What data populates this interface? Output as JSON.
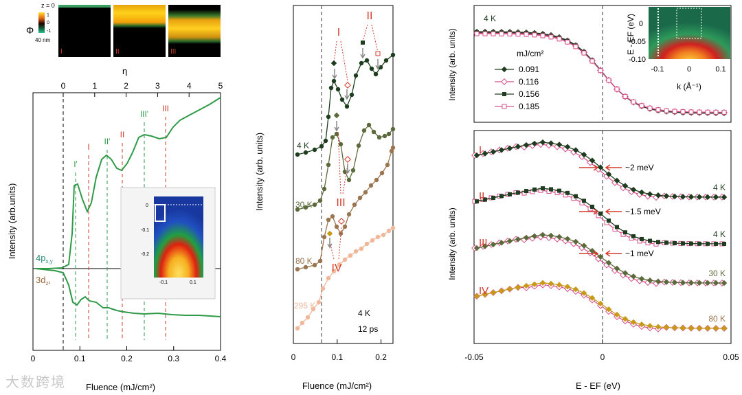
{
  "watermark": "大数跨境",
  "colors": {
    "green": "#2e9a47",
    "dark": "#1e3d1e",
    "olive": "#5b6a3a",
    "brown": "#9a7550",
    "peach": "#f0b79a",
    "pink": "#d6508a",
    "red": "#d23a2a",
    "gold": "#c89a1a"
  },
  "panel_a": {
    "cmap": {
      "z0": "z = 0",
      "phi": "Φ",
      "t1": "1",
      "t0": "0",
      "tm1": "-1",
      "depth": "40 nm",
      "ticks": [
        "1",
        "0",
        "-1"
      ]
    },
    "thumbs": [
      "I",
      "II",
      "III"
    ],
    "eta_label": "η",
    "eta_ticks": [
      "0",
      "1",
      "2",
      "3",
      "4",
      "5"
    ],
    "x_ticks": [
      "0",
      "0.1",
      "0.2",
      "0.3",
      "0.4"
    ],
    "xlabel": "Fluence (mJ/cm²)",
    "ylabel": "Intensity (arb.units)",
    "curve_labels": {
      "p": "4p",
      "p_sub": "x,y",
      "d": "3d",
      "d_sub": "z²"
    },
    "markers_green": [
      "I'",
      "II'",
      "III'"
    ],
    "markers_red": [
      "I",
      "II",
      "III"
    ],
    "inset": {
      "yticks": [
        "0",
        "-0.1",
        "-0.2"
      ],
      "xticks": [
        "-0.1",
        "0.1"
      ]
    }
  },
  "panel_b": {
    "xlabel": "Fluence (mJ/cm²)",
    "ylabel": "Intensity (arb. units)",
    "x_ticks": [
      "0",
      "0.1",
      "0.2"
    ],
    "temps": [
      "4 K",
      "30 K",
      "80 K",
      "295 K"
    ],
    "note1": "4 K",
    "note2": "12 ps",
    "roman": [
      "I",
      "II",
      "III",
      "IV"
    ]
  },
  "panel_c": {
    "temp": "4 K",
    "ylabel": "Intensity (arb. units)",
    "legend_title": "mJ/cm²",
    "legend": [
      "0.091",
      "0.116",
      "0.156",
      "0.185"
    ],
    "inset": {
      "ylabel": "E - EF (eV)",
      "xlabel": "k (Å⁻¹)",
      "yticks": [
        "0",
        "-0.05",
        "-0.10"
      ],
      "xticks": [
        "-0.1",
        "0",
        "0.1"
      ]
    }
  },
  "panel_d": {
    "ylabel": "Intensity (arb. units)",
    "xlabel": "E - EF (eV)",
    "x_ticks": [
      "-0.05",
      "0",
      "0.05"
    ],
    "rows": [
      {
        "label": "I",
        "shift": "~2 meV",
        "temp": "4 K"
      },
      {
        "label": "II",
        "shift": "~1.5 meV",
        "temp": "4 K"
      },
      {
        "label": "III",
        "shift": "~1 meV",
        "temp": "30 K"
      },
      {
        "label": "IV",
        "shift": "",
        "temp": "80 K"
      }
    ]
  }
}
